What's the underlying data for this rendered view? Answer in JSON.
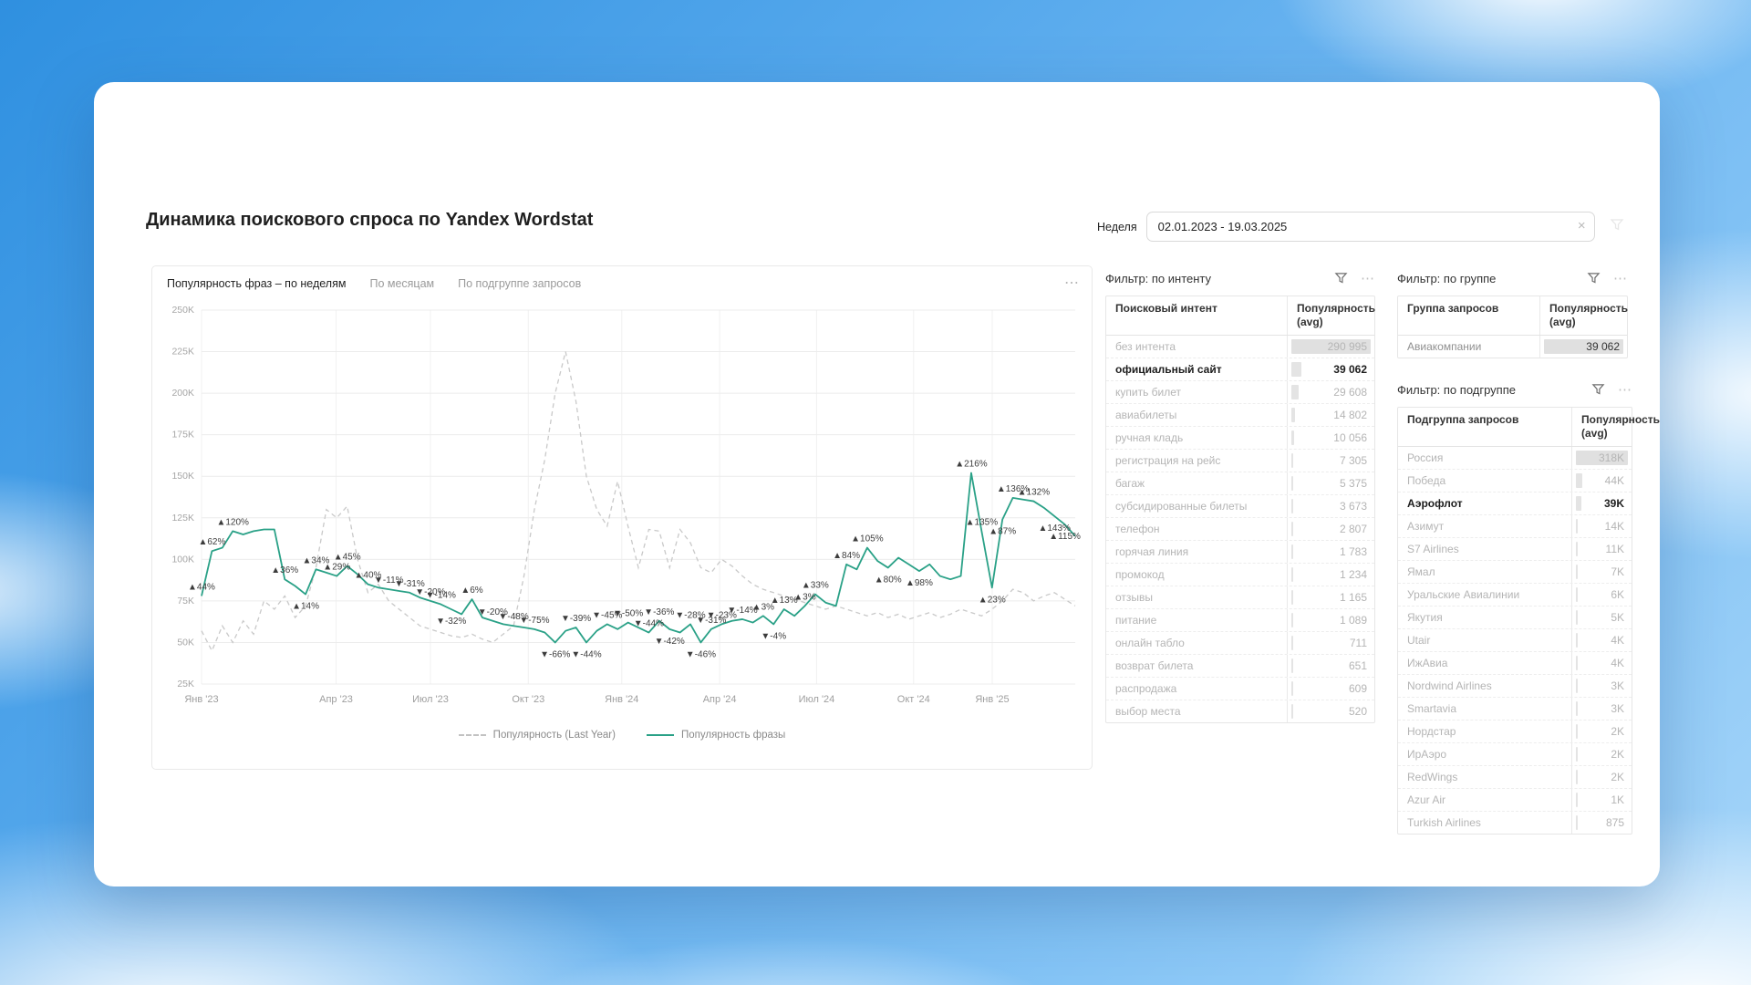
{
  "page": {
    "title": "Динамика поискового спроса по Yandex Wordstat"
  },
  "date_filter": {
    "label": "Неделя",
    "value": "02.01.2023 - 19.03.2025",
    "clear_icon": "×"
  },
  "chart_card": {
    "tabs": [
      {
        "label": "Популярность фраз – по неделям",
        "active": true
      },
      {
        "label": "По месяцам",
        "active": false
      },
      {
        "label": "По подгруппе запросов",
        "active": false
      }
    ],
    "menu_icon": "⋯"
  },
  "chart_data": {
    "type": "line",
    "title": "Популярность фраз – по неделям",
    "unit": "K",
    "ylim": [
      25,
      250
    ],
    "y_ticks": [
      "250K",
      "225K",
      "200K",
      "175K",
      "150K",
      "125K",
      "100K",
      "75K",
      "50K",
      "25K"
    ],
    "x_ticks": [
      {
        "label": "Янв '23",
        "f": 0.0
      },
      {
        "label": "Апр '23",
        "f": 0.154
      },
      {
        "label": "Июл '23",
        "f": 0.262
      },
      {
        "label": "Окт '23",
        "f": 0.374
      },
      {
        "label": "Янв '24",
        "f": 0.481
      },
      {
        "label": "Апр '24",
        "f": 0.593
      },
      {
        "label": "Июл '24",
        "f": 0.704
      },
      {
        "label": "Окт '24",
        "f": 0.815
      },
      {
        "label": "Янв '25",
        "f": 0.905
      }
    ],
    "legend": [
      {
        "name": "Популярность (Last Year)",
        "style": "dashed",
        "color": "#c9c9c9"
      },
      {
        "name": "Популярность фразы",
        "style": "solid",
        "color": "#2aa187"
      }
    ],
    "series": [
      {
        "name": "Популярность (Last Year)",
        "values": [
          57,
          45,
          60,
          50,
          63,
          55,
          75,
          70,
          78,
          65,
          72,
          95,
          130,
          125,
          132,
          100,
          80,
          85,
          75,
          70,
          65,
          60,
          58,
          56,
          54,
          53,
          55,
          52,
          50,
          55,
          60,
          90,
          130,
          160,
          200,
          225,
          195,
          150,
          130,
          120,
          147,
          120,
          95,
          118,
          117,
          95,
          118,
          110,
          95,
          92,
          100,
          96,
          90,
          85,
          82,
          80,
          78,
          76,
          74,
          72,
          70,
          72,
          70,
          68,
          66,
          68,
          65,
          67,
          64,
          66,
          68,
          65,
          67,
          70,
          68,
          66,
          70,
          75,
          82,
          80,
          75,
          78,
          80,
          76,
          72
        ]
      },
      {
        "name": "Популярность фразы",
        "points": [
          [
            78,
            "▲44%"
          ],
          [
            105,
            "▲62%"
          ],
          [
            107
          ],
          [
            117,
            "▲120%"
          ],
          [
            115
          ],
          [
            117
          ],
          [
            118
          ],
          [
            118
          ],
          [
            88,
            "▲36%"
          ],
          [
            84
          ],
          [
            79,
            "▲14%",
            "b"
          ],
          [
            94,
            "▲34%"
          ],
          [
            92
          ],
          [
            90,
            "▲29%"
          ],
          [
            96,
            "▲45%"
          ],
          [
            91
          ],
          [
            85,
            "▲40%"
          ],
          [
            83
          ],
          [
            82,
            "▼-11%"
          ],
          [
            81
          ],
          [
            80,
            "▼-31%"
          ],
          [
            77
          ],
          [
            75,
            "▼-20%"
          ],
          [
            73,
            "▼-14%"
          ],
          [
            70,
            "▼-32%",
            "b"
          ],
          [
            67
          ],
          [
            76,
            "▲6%"
          ],
          [
            65
          ],
          [
            63,
            "▼-20%"
          ],
          [
            61
          ],
          [
            60,
            "▼-48%"
          ],
          [
            59
          ],
          [
            58,
            "▼-75%"
          ],
          [
            56
          ],
          [
            50,
            "▼-66%",
            "b"
          ],
          [
            57
          ],
          [
            59,
            "▼-39%"
          ],
          [
            50,
            "▼-44%",
            "b"
          ],
          [
            57
          ],
          [
            61,
            "▼-45%"
          ],
          [
            58
          ],
          [
            62,
            "▼-50%"
          ],
          [
            59
          ],
          [
            56,
            "▼-44%"
          ],
          [
            63,
            "▼-36%"
          ],
          [
            58,
            "▼-42%",
            "b"
          ],
          [
            56
          ],
          [
            61,
            "▼-28%"
          ],
          [
            50,
            "▼-46%",
            "b"
          ],
          [
            58,
            "▼-31%"
          ],
          [
            61,
            "▼-23%"
          ],
          [
            63
          ],
          [
            64,
            "▼-14%"
          ],
          [
            62
          ],
          [
            66,
            "▲3%"
          ],
          [
            61,
            "▼-4%",
            "b"
          ],
          [
            70,
            "▲13%"
          ],
          [
            66
          ],
          [
            72,
            "▲3%"
          ],
          [
            79,
            "▲33%"
          ],
          [
            74
          ],
          [
            72
          ],
          [
            97,
            "▲84%"
          ],
          [
            94
          ],
          [
            107,
            "▲105%"
          ],
          [
            99
          ],
          [
            95,
            "▲80%",
            "b"
          ],
          [
            101
          ],
          [
            97
          ],
          [
            93,
            "▲98%",
            "b"
          ],
          [
            97
          ],
          [
            90
          ],
          [
            88
          ],
          [
            90
          ],
          [
            152,
            "▲216%"
          ],
          [
            117,
            "▲135%"
          ],
          [
            83,
            "▲23%",
            "b"
          ],
          [
            124,
            "▲87%",
            "b"
          ],
          [
            137,
            "▲136%"
          ],
          [
            136
          ],
          [
            135,
            "▲132%"
          ],
          [
            131
          ],
          [
            126,
            "▲143%",
            "b"
          ],
          [
            121,
            "▲115%",
            "b"
          ],
          [
            114
          ]
        ]
      }
    ]
  },
  "filters": {
    "intent": {
      "title": "Фильтр: по интенту",
      "columns": [
        "Поисковый интент",
        "Популярность (avg)"
      ],
      "rows": [
        {
          "name": "без интента",
          "value": "290 995",
          "num": 290995
        },
        {
          "name": "официальный сайт",
          "value": "39 062",
          "num": 39062,
          "selected": true
        },
        {
          "name": "купить билет",
          "value": "29 608",
          "num": 29608
        },
        {
          "name": "авиабилеты",
          "value": "14 802",
          "num": 14802
        },
        {
          "name": "ручная кладь",
          "value": "10 056",
          "num": 10056
        },
        {
          "name": "регистрация на рейс",
          "value": "7 305",
          "num": 7305
        },
        {
          "name": "багаж",
          "value": "5 375",
          "num": 5375
        },
        {
          "name": "субсидированные билеты",
          "value": "3 673",
          "num": 3673
        },
        {
          "name": "телефон",
          "value": "2 807",
          "num": 2807
        },
        {
          "name": "горячая линия",
          "value": "1 783",
          "num": 1783
        },
        {
          "name": "промокод",
          "value": "1 234",
          "num": 1234
        },
        {
          "name": "отзывы",
          "value": "1 165",
          "num": 1165
        },
        {
          "name": "питание",
          "value": "1 089",
          "num": 1089
        },
        {
          "name": "онлайн табло",
          "value": "711",
          "num": 711
        },
        {
          "name": "возврат билета",
          "value": "651",
          "num": 651
        },
        {
          "name": "распродажа",
          "value": "609",
          "num": 609
        },
        {
          "name": "выбор места",
          "value": "520",
          "num": 520
        }
      ]
    },
    "group": {
      "title": "Фильтр: по группе",
      "columns": [
        "Группа запросов",
        "Популярность (avg)"
      ],
      "rows": [
        {
          "name": "Авиакомпании",
          "value": "39 062",
          "num": 39062,
          "dark": true
        }
      ]
    },
    "subgroup": {
      "title": "Фильтр: по подгруппе",
      "columns": [
        "Подгруппа запросов",
        "Популярность (avg)"
      ],
      "rows": [
        {
          "name": "Россия",
          "value": "318K",
          "num": 318000
        },
        {
          "name": "Победа",
          "value": "44K",
          "num": 44000
        },
        {
          "name": "Аэрофлот",
          "value": "39K",
          "num": 39000,
          "selected": true
        },
        {
          "name": "Азимут",
          "value": "14K",
          "num": 14000
        },
        {
          "name": "S7 Airlines",
          "value": "11K",
          "num": 11000
        },
        {
          "name": "Ямал",
          "value": "7K",
          "num": 7000
        },
        {
          "name": "Уральские Авиалинии",
          "value": "6K",
          "num": 6000
        },
        {
          "name": "Якутия",
          "value": "5K",
          "num": 5000
        },
        {
          "name": "Utair",
          "value": "4K",
          "num": 4000
        },
        {
          "name": "ИжАвиа",
          "value": "4K",
          "num": 4000
        },
        {
          "name": "Nordwind Airlines",
          "value": "3K",
          "num": 3000
        },
        {
          "name": "Smartavia",
          "value": "3K",
          "num": 3000
        },
        {
          "name": "Нордстар",
          "value": "2K",
          "num": 2000
        },
        {
          "name": "ИрАэро",
          "value": "2K",
          "num": 2000
        },
        {
          "name": "RedWings",
          "value": "2K",
          "num": 2000
        },
        {
          "name": "Azur Air",
          "value": "1K",
          "num": 1000
        },
        {
          "name": "Turkish Airlines",
          "value": "875",
          "num": 875
        }
      ]
    }
  }
}
